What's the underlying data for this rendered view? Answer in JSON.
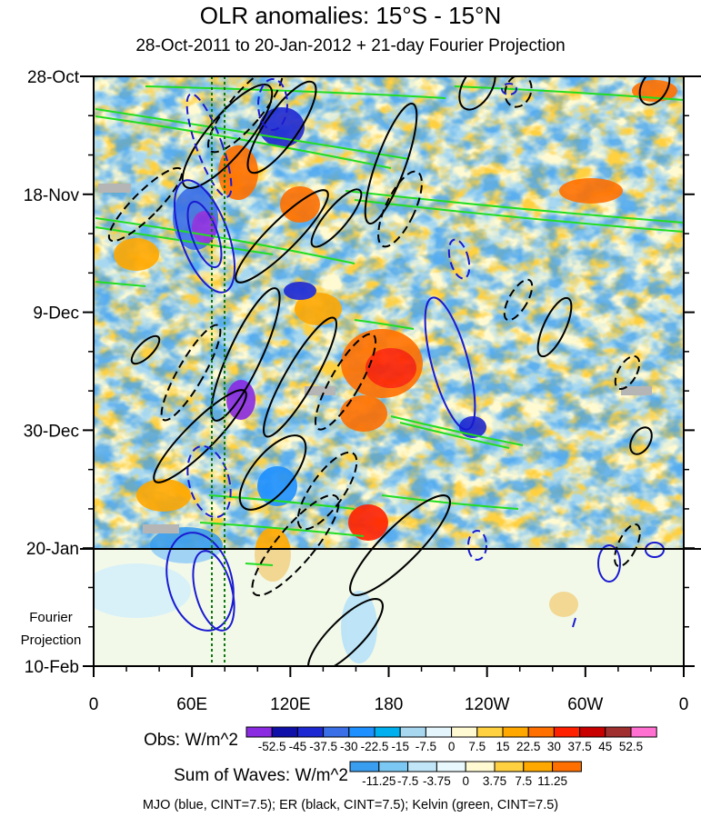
{
  "title": "OLR anomalies: 15°S - 15°N",
  "subtitle": "28-Oct-2011 to 20-Jan-2012 + 21-day Fourier Projection",
  "chart_data": {
    "type": "heatmap",
    "y_ticks": [
      "28-Oct",
      "18-Nov",
      "9-Dec",
      "30-Dec",
      "20-Jan",
      "10-Feb"
    ],
    "x_ticks": [
      "0",
      "60E",
      "120E",
      "180",
      "120W",
      "60W",
      "0"
    ],
    "projection_label": [
      "Fourier",
      "Projection"
    ],
    "projection_start": "20-Jan",
    "obs_legend": {
      "label": "Obs: W/m^2",
      "levels": [
        "-52.5",
        "-45",
        "-37.5",
        "-30",
        "-22.5",
        "-15",
        "-7.5",
        "0",
        "7.5",
        "15",
        "22.5",
        "30",
        "37.5",
        "45",
        "52.5"
      ],
      "colors": [
        "#8a2be2",
        "#1010a8",
        "#1e28d2",
        "#3a6fe8",
        "#1e90ff",
        "#00b0ee",
        "#a8d8f0",
        "#e4f6fc",
        "#fffad2",
        "#ffd040",
        "#ffa800",
        "#ff7000",
        "#ff2000",
        "#c80000",
        "#a03030",
        "#ff70d0"
      ]
    },
    "waves_legend": {
      "label": "Sum of Waves: W/m^2",
      "levels": [
        "-11.25",
        "-7.5",
        "-3.75",
        "0",
        "3.75",
        "7.5",
        "11.25"
      ],
      "colors": [
        "#3a9ef0",
        "#7cc8f4",
        "#c0e6f8",
        "#e8f8fc",
        "#fffad2",
        "#ffd040",
        "#ffa800",
        "#ff7000"
      ]
    },
    "contours": [
      {
        "name": "MJO",
        "color": "#1a1ad0"
      },
      {
        "name": "ER",
        "color": "#000000"
      },
      {
        "name": "Kelvin",
        "color": "#22dd22"
      }
    ]
  },
  "footnote": "MJO (blue, CINT=7.5); ER (black, CINT=7.5); Kelvin (green, CINT=7.5)"
}
